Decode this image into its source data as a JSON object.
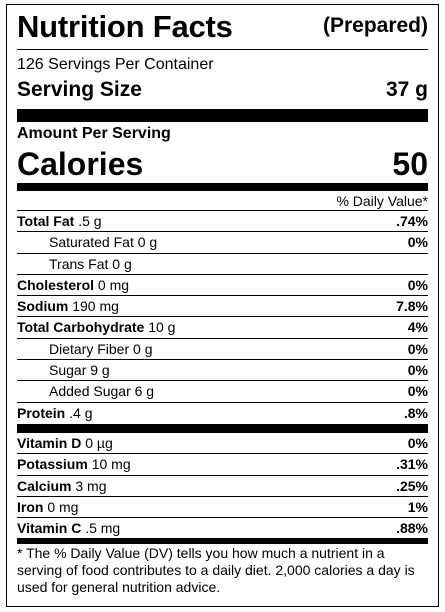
{
  "header": {
    "title": "Nutrition Facts",
    "prepared": "(Prepared)"
  },
  "servings_per_container": "126 Servings Per Container",
  "serving_size": {
    "label": "Serving Size",
    "value": "37 g"
  },
  "amount_per_serving": "Amount Per Serving",
  "calories": {
    "label": "Calories",
    "value": "50"
  },
  "daily_value_header": "% Daily Value*",
  "nutrients": [
    {
      "name": "Total Fat",
      "amount": ".5 g",
      "dv": ".74%",
      "indent": false
    },
    {
      "name": "Saturated Fat",
      "amount": "0 g",
      "dv": "0%",
      "indent": true
    },
    {
      "name": "Trans Fat",
      "amount": "0 g",
      "dv": "",
      "indent": true
    },
    {
      "name": "Cholesterol",
      "amount": "0 mg",
      "dv": "0%",
      "indent": false
    },
    {
      "name": "Sodium",
      "amount": "190 mg",
      "dv": "7.8%",
      "indent": false
    },
    {
      "name": "Total Carbohydrate",
      "amount": "10 g",
      "dv": "4%",
      "indent": false
    },
    {
      "name": "Dietary Fiber",
      "amount": "0 g",
      "dv": "0%",
      "indent": true
    },
    {
      "name": "Sugar",
      "amount": "9 g",
      "dv": "0%",
      "indent": true
    },
    {
      "name": "Added Sugar",
      "amount": "6 g",
      "dv": "0%",
      "indent": true
    },
    {
      "name": "Protein",
      "amount": ".4 g",
      "dv": ".8%",
      "indent": false
    }
  ],
  "vitamins": [
    {
      "name": "Vitamin D",
      "amount": "0 µg",
      "dv": "0%"
    },
    {
      "name": "Potassium",
      "amount": "10 mg",
      "dv": ".31%"
    },
    {
      "name": "Calcium",
      "amount": "3 mg",
      "dv": ".25%"
    },
    {
      "name": "Iron",
      "amount": "0 mg",
      "dv": "1%"
    },
    {
      "name": "Vitamin C",
      "amount": ".5 mg",
      "dv": ".88%"
    }
  ],
  "footnote": "* The % Daily Value (DV) tells you how much a nutrient in a serving of food contributes to a daily diet. 2,000 calories a day is used for general nutrition advice."
}
